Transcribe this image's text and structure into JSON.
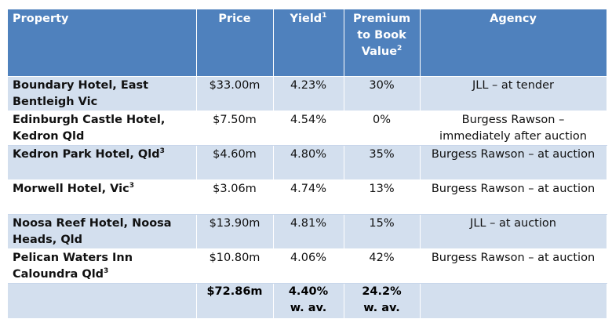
{
  "headers": {
    "property": "Property",
    "price": "Price",
    "yield": "Yield",
    "yield_sup": "1",
    "premium": "Premium to Book Value",
    "premium_sup": "2",
    "agency": "Agency"
  },
  "rows": [
    {
      "property": "Boundary Hotel, East Bentleigh Vic",
      "sup": "",
      "price": "$33.00m",
      "yield": "4.23%",
      "premium": "30%",
      "agency": "JLL – at tender"
    },
    {
      "property": "Edinburgh Castle Hotel, Kedron Qld",
      "sup": "",
      "price": "$7.50m",
      "yield": "4.54%",
      "premium": "0%",
      "agency": "Burgess Rawson – immediately after auction"
    },
    {
      "property": "Kedron Park Hotel, Qld",
      "sup": "3",
      "price": "$4.60m",
      "yield": "4.80%",
      "premium": "35%",
      "agency": "Burgess Rawson – at auction"
    },
    {
      "property": "Morwell Hotel, Vic",
      "sup": "3",
      "price": "$3.06m",
      "yield": "4.74%",
      "premium": "13%",
      "agency": "Burgess Rawson – at auction"
    },
    {
      "property": "Noosa Reef Hotel, Noosa Heads, Qld",
      "sup": "",
      "price": "$13.90m",
      "yield": "4.81%",
      "premium": "15%",
      "agency": "JLL – at auction"
    },
    {
      "property": "Pelican Waters Inn Caloundra Qld",
      "sup": "3",
      "price": "$10.80m",
      "yield": "4.06%",
      "premium": "42%",
      "agency": "Burgess Rawson – at auction"
    }
  ],
  "total": {
    "price": "$72.86m",
    "yield": "4.40%",
    "yield_note": "w. av.",
    "premium": "24.2%",
    "premium_note": "w. av."
  },
  "colors": {
    "header": "#4f81bd",
    "band": "#d3dfee"
  }
}
